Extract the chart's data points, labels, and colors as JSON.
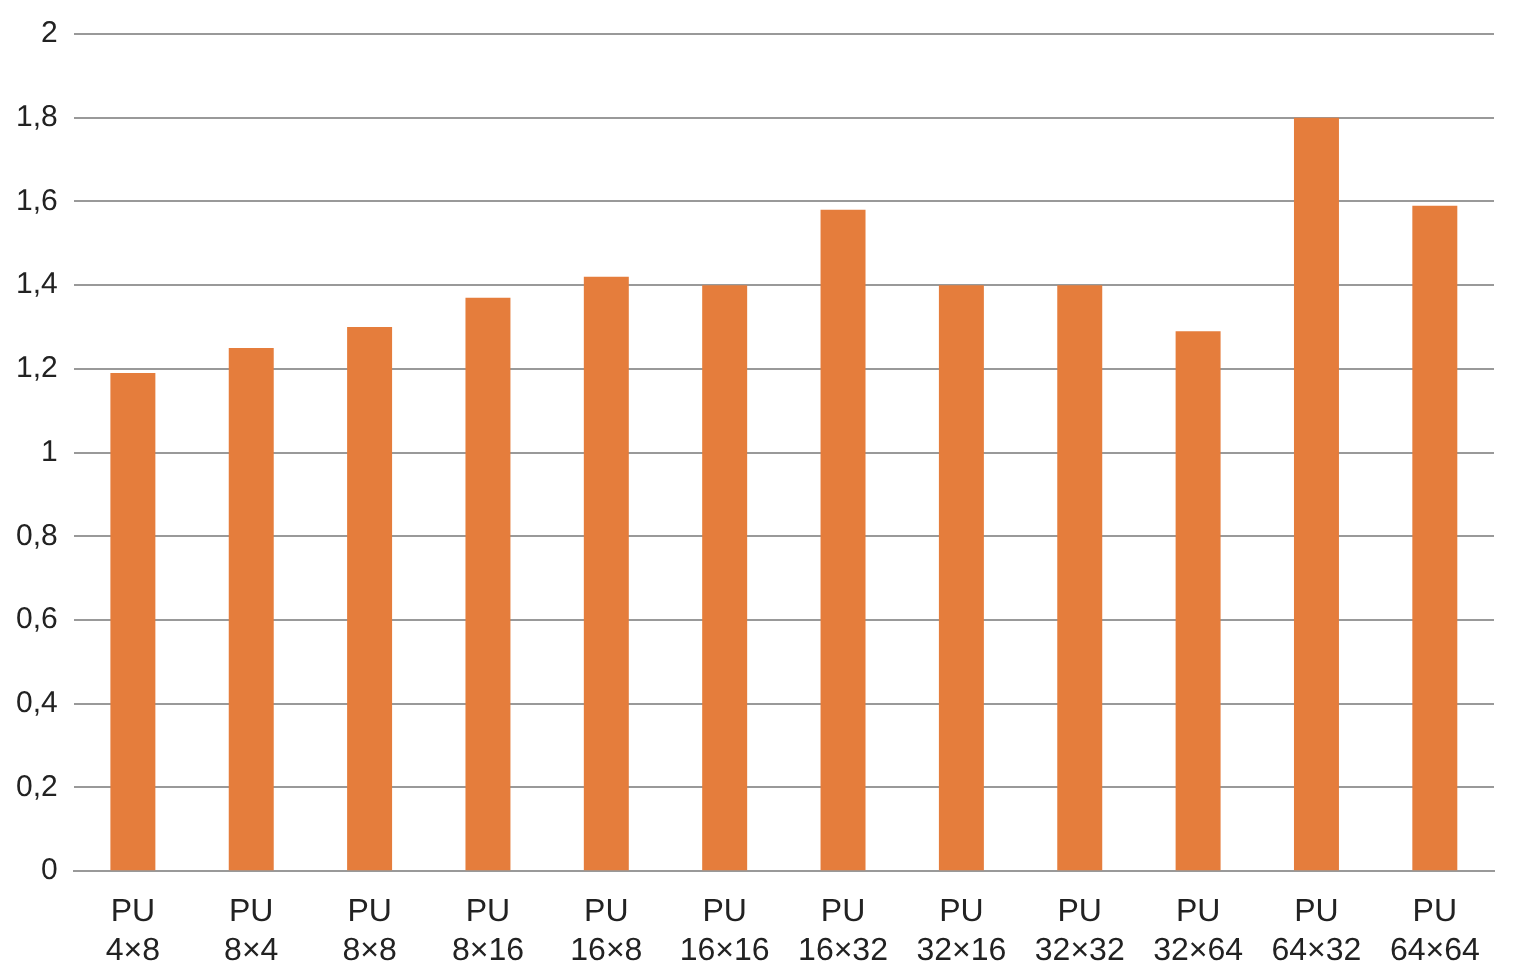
{
  "chart_data": {
    "type": "bar",
    "categories": [
      "PU 4×8",
      "PU 8×4",
      "PU 8×8",
      "PU 8×16",
      "PU 16×8",
      "PU 16×16",
      "PU 16×32",
      "PU 32×16",
      "PU 32×32",
      "PU 32×64",
      "PU 64×32",
      "PU 64×64"
    ],
    "values": [
      1.19,
      1.25,
      1.3,
      1.37,
      1.42,
      1.4,
      1.58,
      1.4,
      1.4,
      1.29,
      1.8,
      1.59
    ],
    "color": "#e57d3c",
    "ylim": [
      0,
      2
    ],
    "yticks": [
      0,
      {
        "value": 0.2,
        "label": "0,2"
      },
      {
        "value": 0.4,
        "label": "0,4"
      },
      {
        "value": 0.6,
        "label": "0,6"
      },
      {
        "value": 0.8,
        "label": "0,8"
      },
      1,
      {
        "value": 1.2,
        "label": "1,2"
      },
      {
        "value": 1.4,
        "label": "1,4"
      },
      {
        "value": 1.6,
        "label": "1,6"
      },
      {
        "value": 1.8,
        "label": "1,8"
      },
      2
    ],
    "grid": "y"
  }
}
